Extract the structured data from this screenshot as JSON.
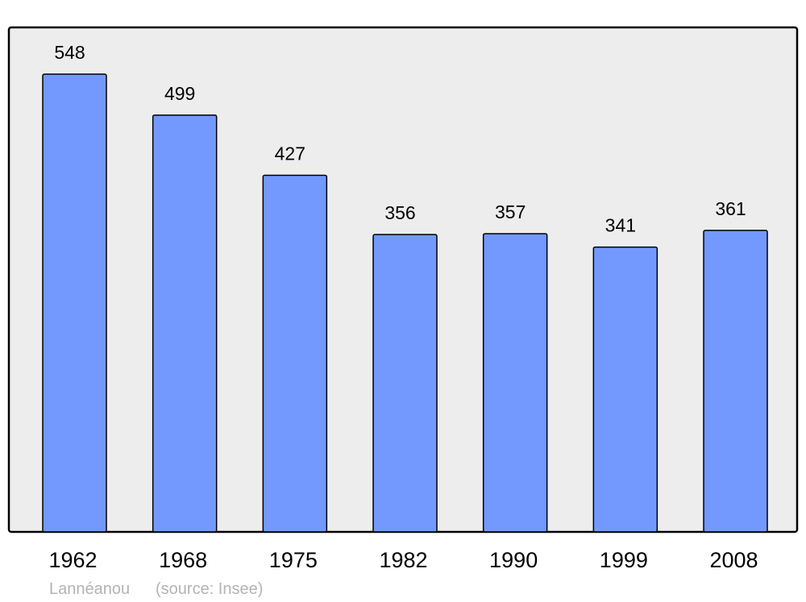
{
  "chart_data": {
    "type": "bar",
    "categories": [
      "1962",
      "1968",
      "1975",
      "1982",
      "1990",
      "1999",
      "2008"
    ],
    "values": [
      548,
      499,
      427,
      356,
      357,
      341,
      361
    ],
    "title": "",
    "xlabel": "",
    "ylabel": "",
    "ylim": [
      0,
      604
    ],
    "grid": false,
    "data_labels": true,
    "colors": {
      "bar": "#7399ff",
      "bar_stroke": "#000000",
      "plot_background": "#ededed",
      "footer_text": "#b3b3b3"
    }
  },
  "footer": {
    "place": "Lannéanou",
    "source": "(source: Insee)"
  }
}
